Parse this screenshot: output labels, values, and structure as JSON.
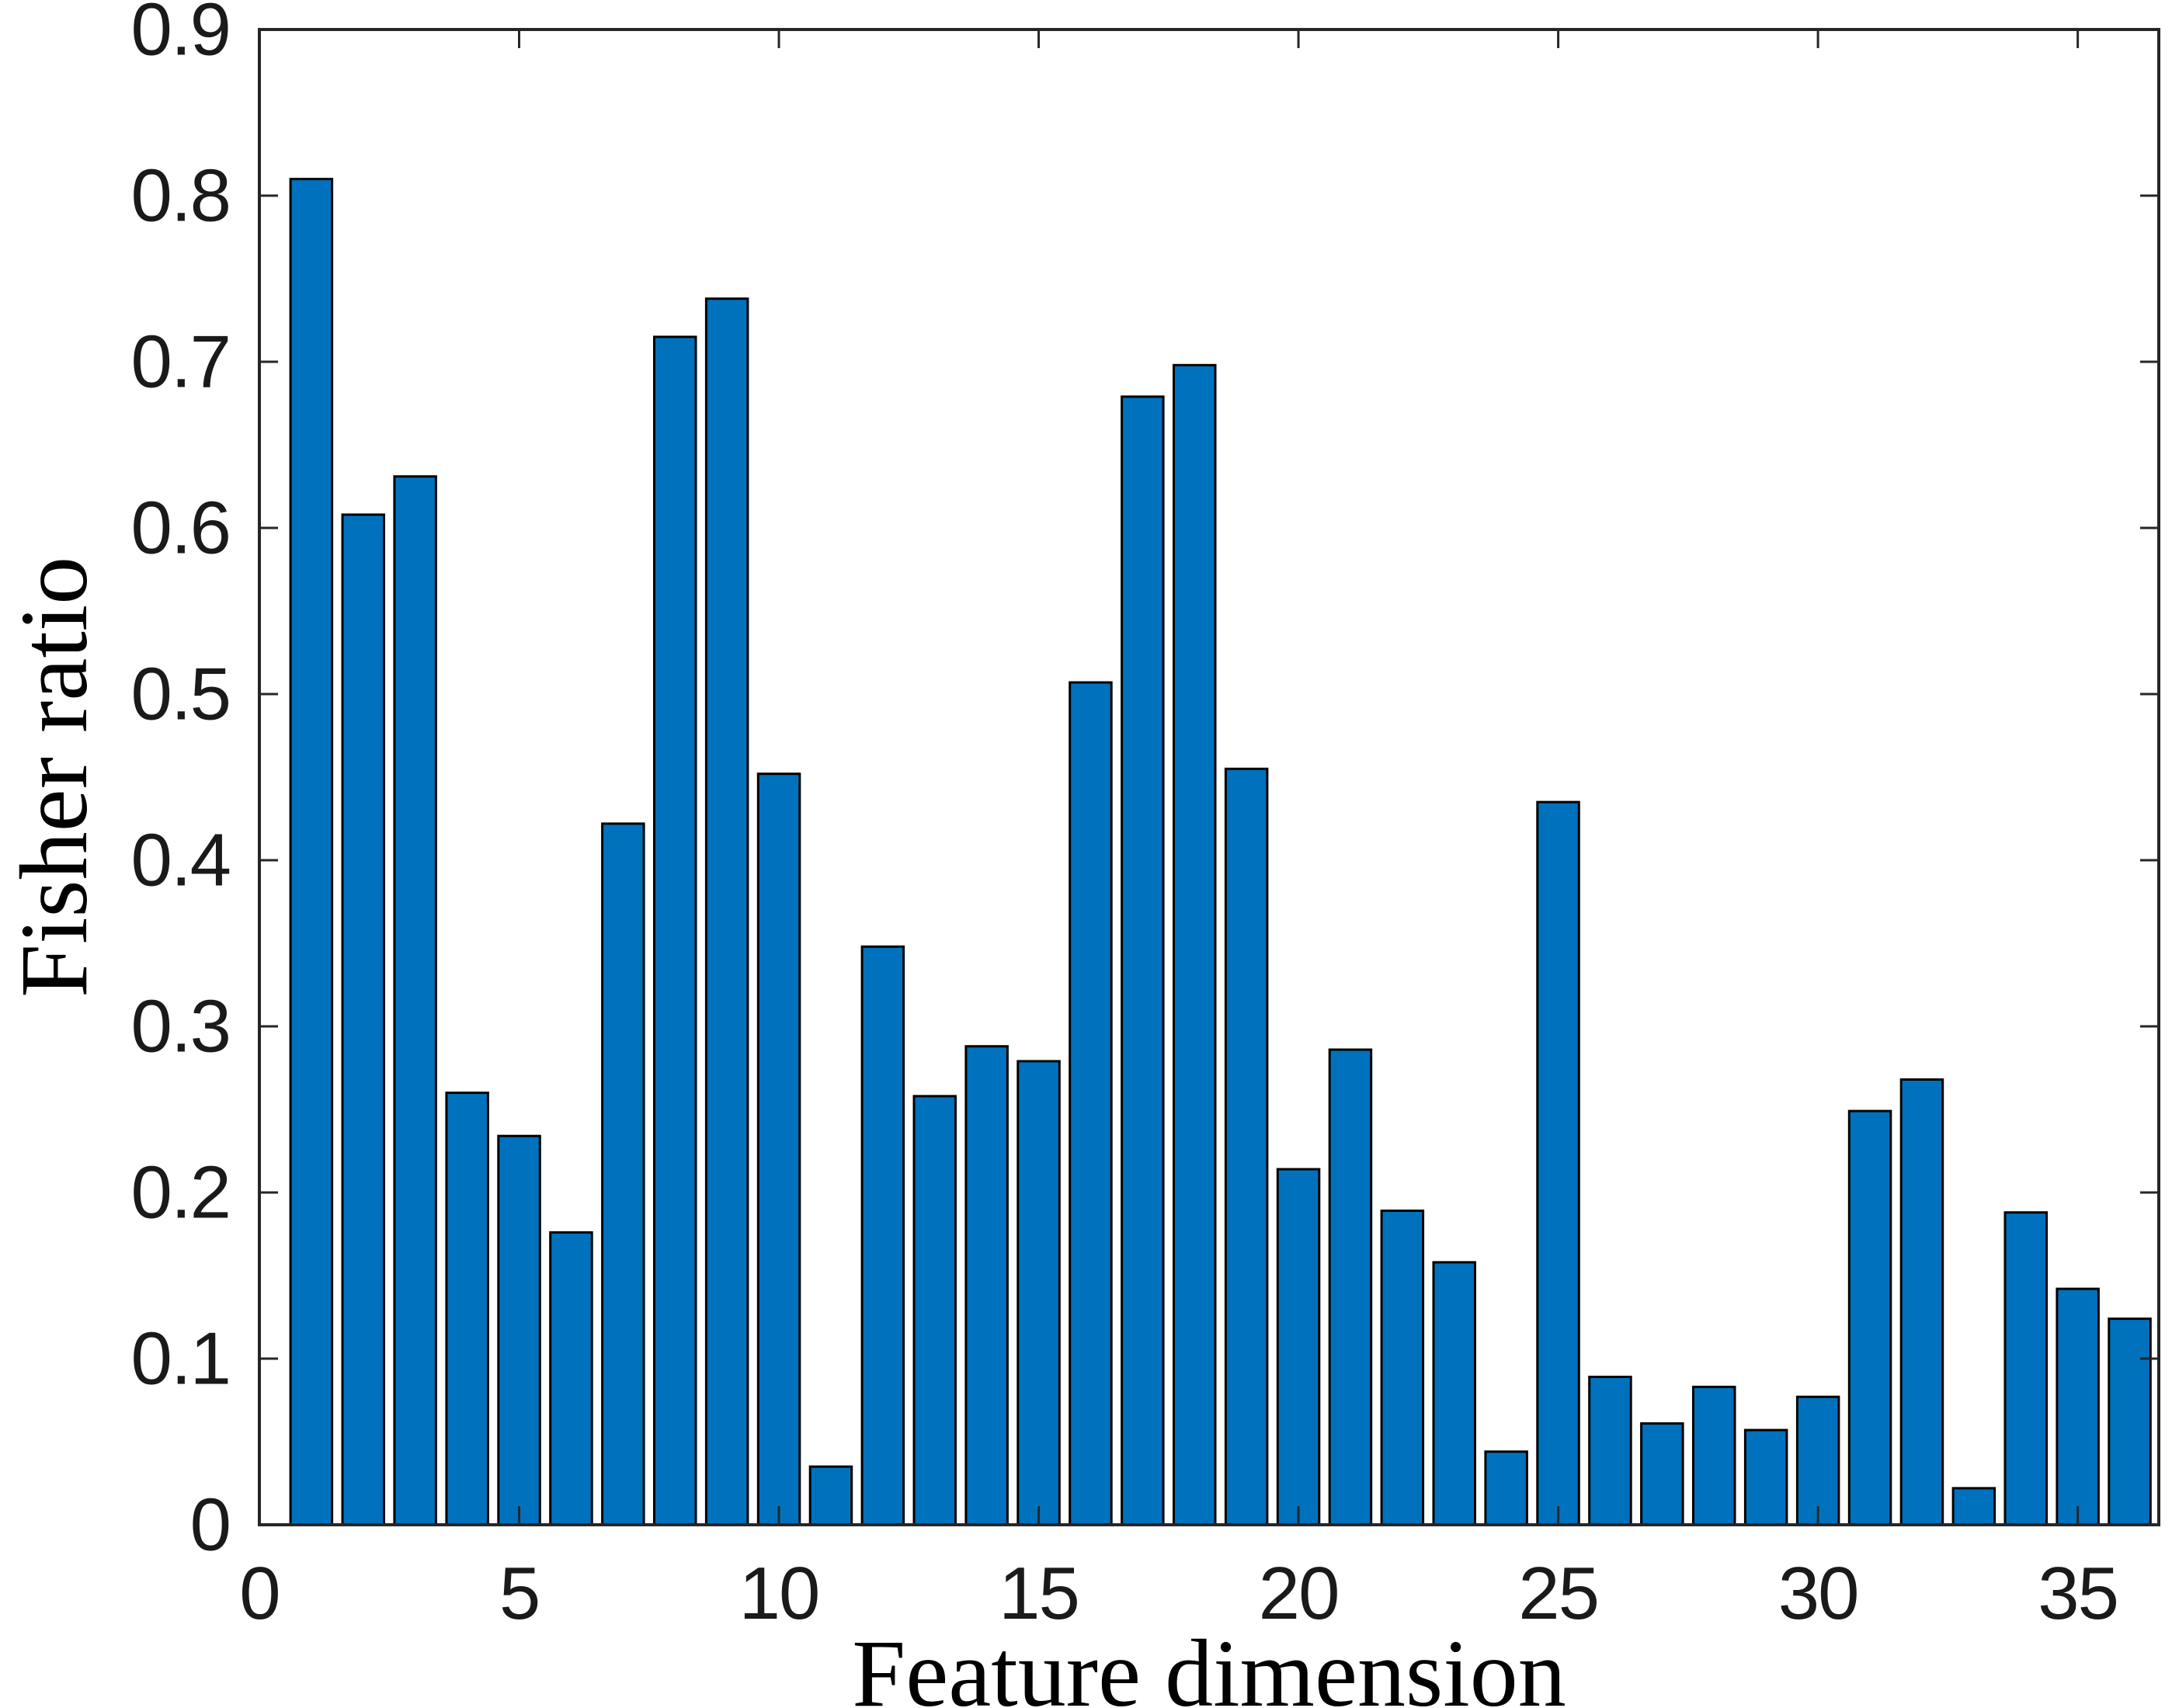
{
  "chart_data": {
    "type": "bar",
    "title": "",
    "xlabel": "Feature dimension",
    "ylabel": "Fisher ratio",
    "x": [
      1,
      2,
      3,
      4,
      5,
      6,
      7,
      8,
      9,
      10,
      11,
      12,
      13,
      14,
      15,
      16,
      17,
      18,
      19,
      20,
      21,
      22,
      23,
      24,
      25,
      26,
      27,
      28,
      29,
      30,
      31,
      32,
      33,
      34,
      35,
      36
    ],
    "values": [
      0.81,
      0.608,
      0.631,
      0.26,
      0.234,
      0.176,
      0.422,
      0.715,
      0.738,
      0.452,
      0.035,
      0.348,
      0.258,
      0.288,
      0.279,
      0.507,
      0.679,
      0.698,
      0.455,
      0.214,
      0.286,
      0.189,
      0.158,
      0.044,
      0.435,
      0.089,
      0.061,
      0.083,
      0.057,
      0.077,
      0.249,
      0.268,
      0.022,
      0.188,
      0.142,
      0.124
    ],
    "xlim": [
      0,
      36.56
    ],
    "ylim": [
      0,
      0.9
    ],
    "xticks": [
      0,
      5,
      10,
      15,
      20,
      25,
      30,
      35
    ],
    "xtick_labels": [
      "0",
      "5",
      "10",
      "15",
      "20",
      "25",
      "30",
      "35"
    ],
    "yticks": [
      0,
      0.1,
      0.2,
      0.3,
      0.4,
      0.5,
      0.6,
      0.7,
      0.8,
      0.9
    ],
    "ytick_labels": [
      "0",
      "0.1",
      "0.2",
      "0.3",
      "0.4",
      "0.5",
      "0.6",
      "0.7",
      "0.8",
      "0.9"
    ],
    "grid": false,
    "legend": false,
    "bar_width_fraction": 0.8,
    "colors": {
      "bar_fill": "#0072BD",
      "bar_edge": "#000000",
      "axis": "#262626",
      "tick_label": "#1a1a1a",
      "axis_label": "#000000",
      "background": "#ffffff"
    }
  }
}
